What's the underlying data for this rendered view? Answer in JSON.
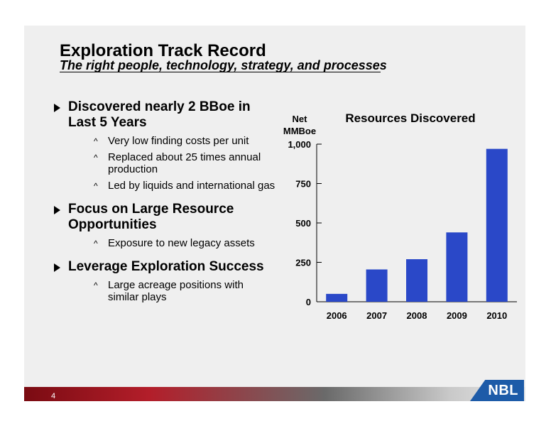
{
  "slide": {
    "title": "Exploration Track Record",
    "subtitle": "The right people, technology, strategy, and processes",
    "page_number": "4",
    "logo_text": "NBL"
  },
  "bullets": [
    {
      "text": "Discovered nearly 2 BBoe in Last 5 Years",
      "subs": [
        "Very low finding costs per unit",
        "Replaced about 25 times annual production",
        "Led by liquids and international gas"
      ]
    },
    {
      "text": "Focus on Large Resource Opportunities",
      "subs": [
        "Exposure to new legacy assets"
      ]
    },
    {
      "text": "Leverage Exploration Success",
      "subs": [
        "Large acreage positions with similar plays"
      ]
    }
  ],
  "colors": {
    "bar": "#2a48c8",
    "accent_red": "#b31e2a",
    "logo_blue": "#1d5ba8"
  },
  "chart_data": {
    "type": "bar",
    "title": "Resources Discovered",
    "ylabel_line1": "Net",
    "ylabel_line2": "MMBoe",
    "categories": [
      "2006",
      "2007",
      "2008",
      "2009",
      "2010"
    ],
    "values": [
      50,
      205,
      270,
      440,
      970
    ],
    "ylim": [
      0,
      1000
    ],
    "yticks": [
      0,
      250,
      500,
      750,
      1000
    ],
    "ytick_labels": [
      "0",
      "250",
      "500",
      "750",
      "1,000"
    ],
    "grid": false,
    "legend": "none"
  }
}
